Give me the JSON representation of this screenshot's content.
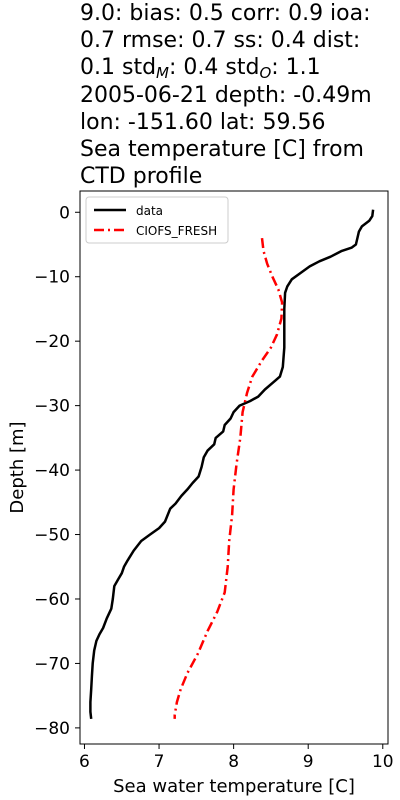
{
  "title_lines": [
    "9.0: bias: 0.5  corr: 0.9  ioa:",
    "0.7  rmse: 0.7  ss: 0.4  dist:",
    "0.1  std_M: 0.4  std_O: 1.1",
    "2005-06-21 depth: -0.49m",
    "lon: -151.60 lat: 59.56",
    "Sea temperature [C] from",
    "CTD profile"
  ],
  "chart_data": {
    "type": "line",
    "xlabel": "Sea water temperature [C]",
    "ylabel": "Depth [m]",
    "xlim": [
      5.94,
      10.07
    ],
    "ylim": [
      -82.5,
      3.3
    ],
    "xticks": [
      6,
      7,
      8,
      9,
      10
    ],
    "yticks": [
      0,
      -10,
      -20,
      -30,
      -40,
      -50,
      -60,
      -70,
      -80
    ],
    "xtick_labels": [
      "6",
      "7",
      "8",
      "9",
      "10"
    ],
    "ytick_labels": [
      "0",
      "−10",
      "−20",
      "−30",
      "−40",
      "−50",
      "−60",
      "−70",
      "−80"
    ],
    "grid": false,
    "legend": {
      "position": "top-left"
    },
    "series": [
      {
        "name": "data",
        "color": "#000000",
        "style": "solid",
        "points": [
          [
            9.87,
            0.4
          ],
          [
            9.86,
            -0.6
          ],
          [
            9.82,
            -1.3
          ],
          [
            9.72,
            -2.2
          ],
          [
            9.68,
            -3.0
          ],
          [
            9.66,
            -4.0
          ],
          [
            9.64,
            -5.0
          ],
          [
            9.58,
            -5.5
          ],
          [
            9.45,
            -6.0
          ],
          [
            9.3,
            -6.9
          ],
          [
            9.15,
            -7.6
          ],
          [
            9.02,
            -8.4
          ],
          [
            8.9,
            -9.4
          ],
          [
            8.78,
            -10.4
          ],
          [
            8.72,
            -11.5
          ],
          [
            8.69,
            -12.5
          ],
          [
            8.68,
            -15.0
          ],
          [
            8.68,
            -18.0
          ],
          [
            8.68,
            -21.0
          ],
          [
            8.66,
            -24.0
          ],
          [
            8.62,
            -25.5
          ],
          [
            8.52,
            -26.5
          ],
          [
            8.42,
            -27.5
          ],
          [
            8.33,
            -28.6
          ],
          [
            8.22,
            -29.3
          ],
          [
            8.08,
            -30.0
          ],
          [
            8.0,
            -31.0
          ],
          [
            7.96,
            -32.0
          ],
          [
            7.88,
            -33.0
          ],
          [
            7.86,
            -34.0
          ],
          [
            7.76,
            -35.0
          ],
          [
            7.74,
            -36.0
          ],
          [
            7.65,
            -37.0
          ],
          [
            7.6,
            -38.0
          ],
          [
            7.57,
            -39.5
          ],
          [
            7.53,
            -41.0
          ],
          [
            7.45,
            -42.0
          ],
          [
            7.38,
            -43.0
          ],
          [
            7.3,
            -44.0
          ],
          [
            7.22,
            -45.2
          ],
          [
            7.15,
            -46.0
          ],
          [
            7.08,
            -48.0
          ],
          [
            7.0,
            -49.0
          ],
          [
            6.88,
            -50.0
          ],
          [
            6.76,
            -51.0
          ],
          [
            6.66,
            -52.5
          ],
          [
            6.58,
            -54.0
          ],
          [
            6.53,
            -55.0
          ],
          [
            6.5,
            -56.0
          ],
          [
            6.45,
            -57.0
          ],
          [
            6.4,
            -58.0
          ],
          [
            6.38,
            -60.0
          ],
          [
            6.36,
            -61.5
          ],
          [
            6.3,
            -63.0
          ],
          [
            6.25,
            -64.5
          ],
          [
            6.2,
            -65.5
          ],
          [
            6.16,
            -66.5
          ],
          [
            6.13,
            -68.0
          ],
          [
            6.11,
            -70.0
          ],
          [
            6.1,
            -72.0
          ],
          [
            6.09,
            -74.0
          ],
          [
            6.08,
            -76.0
          ],
          [
            6.08,
            -77.5
          ],
          [
            6.09,
            -78.6
          ]
        ]
      },
      {
        "name": "CIOFS_FRESH",
        "color": "#ff0000",
        "style": "dashdot",
        "points": [
          [
            8.38,
            -4.0
          ],
          [
            8.4,
            -6.0
          ],
          [
            8.45,
            -8.0
          ],
          [
            8.52,
            -10.0
          ],
          [
            8.6,
            -12.0
          ],
          [
            8.65,
            -14.0
          ],
          [
            8.64,
            -16.5
          ],
          [
            8.58,
            -19.0
          ],
          [
            8.5,
            -21.0
          ],
          [
            8.38,
            -23.0
          ],
          [
            8.25,
            -25.5
          ],
          [
            8.18,
            -28.0
          ],
          [
            8.12,
            -31.0
          ],
          [
            8.09,
            -35.0
          ],
          [
            8.04,
            -39.0
          ],
          [
            8.0,
            -43.0
          ],
          [
            7.98,
            -47.0
          ],
          [
            7.94,
            -51.0
          ],
          [
            7.92,
            -55.0
          ],
          [
            7.88,
            -59.0
          ],
          [
            7.78,
            -62.0
          ],
          [
            7.65,
            -65.0
          ],
          [
            7.52,
            -68.5
          ],
          [
            7.38,
            -71.5
          ],
          [
            7.29,
            -74.0
          ],
          [
            7.24,
            -76.0
          ],
          [
            7.21,
            -78.0
          ],
          [
            7.21,
            -78.6
          ]
        ]
      }
    ]
  }
}
